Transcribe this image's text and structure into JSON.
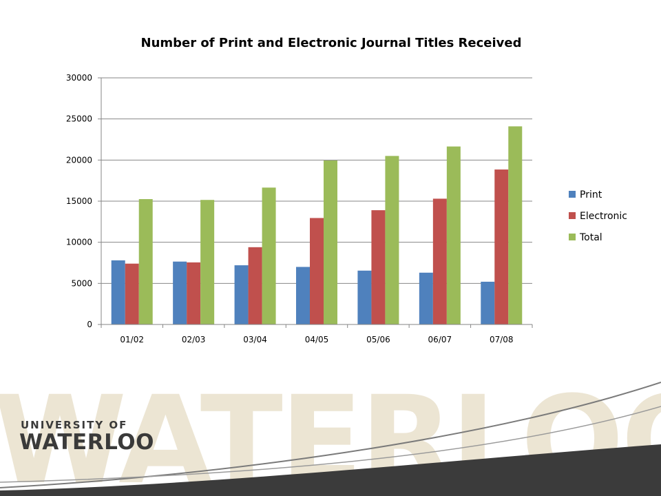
{
  "chart_data": {
    "type": "bar",
    "title": "Number of Print and Electronic Journal Titles Received",
    "xlabel": "",
    "ylabel": "",
    "categories": [
      "01/02",
      "02/03",
      "03/04",
      "04/05",
      "05/06",
      "06/07",
      "07/08"
    ],
    "series": [
      {
        "name": "Print",
        "color": "#4F81BD",
        "values": [
          7800,
          7650,
          7200,
          7000,
          6550,
          6300,
          5200
        ]
      },
      {
        "name": "Electronic",
        "color": "#C0504D",
        "values": [
          7400,
          7550,
          9400,
          12950,
          13900,
          15300,
          18850
        ]
      },
      {
        "name": "Total",
        "color": "#9BBB59",
        "values": [
          15250,
          15150,
          16650,
          19950,
          20500,
          21650,
          24100
        ]
      }
    ],
    "ylim": [
      0,
      30000
    ],
    "yticks": [
      "0",
      "5000",
      "10000",
      "15000",
      "20000",
      "25000",
      "30000"
    ],
    "grid": true,
    "legend_position": "right"
  },
  "branding": {
    "logo_line1": "UNIVERSITY OF",
    "logo_line2": "WATERLOO",
    "watermark": "WATERLOO",
    "watermark_color": "#ECE5D3",
    "logo_color": "#3A3A3A",
    "band_color": "#3B3B3B"
  }
}
